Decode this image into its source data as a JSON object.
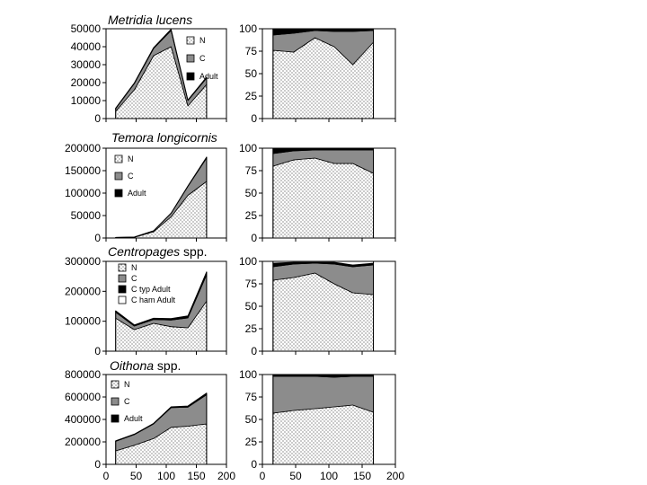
{
  "chart_data": [
    {
      "type": "area",
      "title_italic": "Metridia lucens",
      "title_plain": "",
      "xlim": [
        0,
        200
      ],
      "xticks": [],
      "ylim": [
        0,
        50000
      ],
      "yticks": [
        "0",
        "10000",
        "20000",
        "30000",
        "40000",
        "50000"
      ],
      "x": [
        16,
        47,
        79,
        108,
        136,
        167
      ],
      "legend_placement": "top-right",
      "series": [
        {
          "name": "N",
          "fill": "dots",
          "color": "#ffffff",
          "values": [
            4000,
            16000,
            35000,
            40000,
            7000,
            19000
          ]
        },
        {
          "name": "C",
          "fill": "solid",
          "color": "#8c8c8c",
          "values": [
            1500,
            3500,
            4000,
            9000,
            3000,
            3500
          ]
        },
        {
          "name": "Adult",
          "fill": "solid",
          "color": "#000000",
          "values": [
            300,
            400,
            500,
            800,
            400,
            600
          ]
        }
      ]
    },
    {
      "type": "area",
      "title_italic": "",
      "title_plain": "",
      "xlim": [
        0,
        200
      ],
      "xticks": [],
      "ylim": [
        0,
        100
      ],
      "yticks": [
        "0",
        "25",
        "50",
        "75",
        "100"
      ],
      "x": [
        16,
        47,
        79,
        108,
        136,
        167
      ],
      "series": [
        {
          "name": "N",
          "fill": "dots",
          "color": "#ffffff",
          "values": [
            76,
            74,
            90,
            80,
            60,
            85
          ]
        },
        {
          "name": "C",
          "fill": "solid",
          "color": "#8c8c8c",
          "values": [
            17,
            21,
            8,
            17,
            37,
            13
          ]
        },
        {
          "name": "Adult",
          "fill": "solid",
          "color": "#000000",
          "values": [
            7,
            5,
            2,
            3,
            3,
            2
          ]
        }
      ]
    },
    {
      "type": "area",
      "title_italic": "Temora longicornis",
      "title_plain": "",
      "xlim": [
        0,
        200
      ],
      "xticks": [],
      "ylim": [
        0,
        200000
      ],
      "yticks": [
        "0",
        "50000",
        "100000",
        "150000",
        "200000"
      ],
      "x": [
        16,
        47,
        79,
        108,
        136,
        167
      ],
      "legend_placement": "left",
      "series": [
        {
          "name": "N",
          "fill": "dots",
          "color": "#ffffff",
          "values": [
            1000,
            1500,
            14000,
            47000,
            95000,
            126000
          ]
        },
        {
          "name": "C",
          "fill": "solid",
          "color": "#8c8c8c",
          "values": [
            300,
            600,
            2000,
            8000,
            20000,
            52000
          ]
        },
        {
          "name": "Adult",
          "fill": "solid",
          "color": "#000000",
          "values": [
            100,
            200,
            300,
            600,
            1000,
            2500
          ]
        }
      ]
    },
    {
      "type": "area",
      "title_italic": "",
      "title_plain": "",
      "xlim": [
        0,
        200
      ],
      "xticks": [],
      "ylim": [
        0,
        100
      ],
      "yticks": [
        "0",
        "25",
        "50",
        "75",
        "100"
      ],
      "x": [
        16,
        47,
        79,
        108,
        136,
        167
      ],
      "series": [
        {
          "name": "N",
          "fill": "dots",
          "color": "#ffffff",
          "values": [
            80,
            87,
            89,
            83,
            83,
            72
          ]
        },
        {
          "name": "C",
          "fill": "solid",
          "color": "#8c8c8c",
          "values": [
            14,
            10,
            9,
            15,
            15,
            26
          ]
        },
        {
          "name": "Adult",
          "fill": "solid",
          "color": "#000000",
          "values": [
            6,
            3,
            2,
            2,
            2,
            2
          ]
        }
      ]
    },
    {
      "type": "area",
      "title_italic": "Centropages",
      "title_plain": "spp.",
      "xlim": [
        0,
        200
      ],
      "xticks": [],
      "ylim": [
        0,
        300000
      ],
      "yticks": [
        "0",
        "100000",
        "200000",
        "300000"
      ],
      "x": [
        16,
        47,
        79,
        108,
        136,
        167
      ],
      "legend_placement": "top-left",
      "series": [
        {
          "name": "N",
          "fill": "dots",
          "color": "#ffffff",
          "values": [
            110000,
            72000,
            93000,
            82000,
            78000,
            167000
          ]
        },
        {
          "name": "C",
          "fill": "solid",
          "color": "#8c8c8c",
          "values": [
            20000,
            12000,
            13000,
            22000,
            33000,
            88000
          ]
        },
        {
          "name": "C typ Adult",
          "fill": "solid",
          "color": "#000000",
          "values": [
            4000,
            3000,
            3000,
            4000,
            5000,
            8000
          ]
        },
        {
          "name": "C ham Adult",
          "fill": "solid",
          "color": "#ffffff",
          "values": [
            1000,
            1000,
            1000,
            1000,
            2000,
            2000
          ]
        }
      ]
    },
    {
      "type": "area",
      "title_italic": "",
      "title_plain": "",
      "xlim": [
        0,
        200
      ],
      "xticks": [],
      "ylim": [
        0,
        100
      ],
      "yticks": [
        "0",
        "25",
        "50",
        "75",
        "100"
      ],
      "x": [
        16,
        47,
        79,
        108,
        136,
        167
      ],
      "series": [
        {
          "name": "N",
          "fill": "dots",
          "color": "#ffffff",
          "values": [
            79,
            82,
            87,
            75,
            65,
            63
          ]
        },
        {
          "name": "C",
          "fill": "solid",
          "color": "#8c8c8c",
          "values": [
            15,
            15,
            11,
            22,
            29,
            33
          ]
        },
        {
          "name": "C typ Adult",
          "fill": "solid",
          "color": "#000000",
          "values": [
            4,
            2,
            1,
            2,
            2,
            2
          ]
        },
        {
          "name": "C ham Adult",
          "fill": "solid",
          "color": "#ffffff",
          "values": [
            2,
            1,
            1,
            1,
            4,
            2
          ]
        }
      ]
    },
    {
      "type": "area",
      "title_italic": "Oithona",
      "title_plain": "spp.",
      "xlim": [
        0,
        200
      ],
      "xticks": [
        "0",
        "50",
        "100",
        "150",
        "200"
      ],
      "ylim": [
        0,
        800000
      ],
      "yticks": [
        "0",
        "200000",
        "400000",
        "600000",
        "800000"
      ],
      "x": [
        16,
        47,
        79,
        108,
        136,
        167
      ],
      "legend_placement": "top-left",
      "series": [
        {
          "name": "N",
          "fill": "dots",
          "color": "#ffffff",
          "values": [
            120000,
            170000,
            230000,
            330000,
            340000,
            360000
          ]
        },
        {
          "name": "C",
          "fill": "solid",
          "color": "#8c8c8c",
          "values": [
            85000,
            95000,
            130000,
            175000,
            170000,
            260000
          ]
        },
        {
          "name": "Adult",
          "fill": "solid",
          "color": "#000000",
          "values": [
            5000,
            5000,
            6000,
            8000,
            10000,
            15000
          ]
        }
      ]
    },
    {
      "type": "area",
      "title_italic": "",
      "title_plain": "",
      "xlim": [
        0,
        200
      ],
      "xticks": [
        "0",
        "50",
        "100",
        "150",
        "200"
      ],
      "ylim": [
        0,
        100
      ],
      "yticks": [
        "0",
        "25",
        "50",
        "75",
        "100"
      ],
      "x": [
        16,
        47,
        79,
        108,
        136,
        167
      ],
      "series": [
        {
          "name": "N",
          "fill": "dots",
          "color": "#ffffff",
          "values": [
            57,
            60,
            62,
            64,
            66,
            58
          ]
        },
        {
          "name": "C",
          "fill": "solid",
          "color": "#8c8c8c",
          "values": [
            41,
            38,
            36,
            33,
            32,
            40
          ]
        },
        {
          "name": "Adult",
          "fill": "solid",
          "color": "#000000",
          "values": [
            2,
            2,
            2,
            3,
            2,
            2
          ]
        }
      ]
    }
  ]
}
